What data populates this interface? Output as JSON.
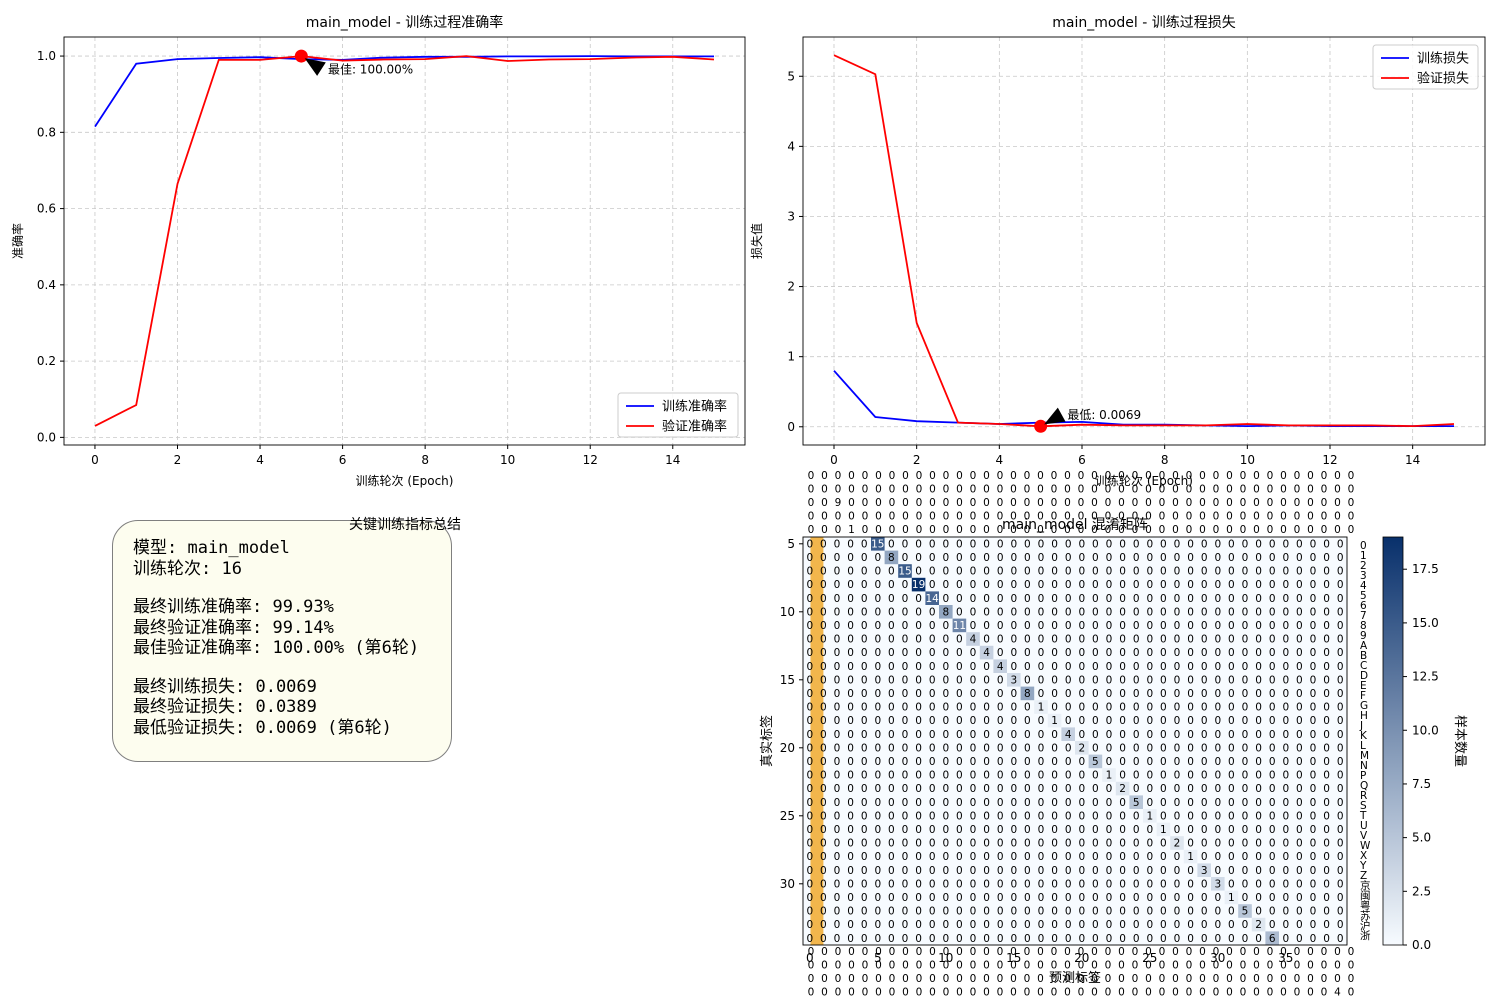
{
  "chart_data": [
    {
      "type": "line",
      "title": "main_model - 训练过程准确率",
      "xlabel": "训练轮次 (Epoch)",
      "ylabel": "准确率",
      "xlim": [
        -0.75,
        15.75
      ],
      "ylim": [
        -0.02,
        1.05
      ],
      "xticks": [
        0,
        2,
        4,
        6,
        8,
        10,
        12,
        14
      ],
      "yticks": [
        0.0,
        0.2,
        0.4,
        0.6,
        0.8,
        1.0
      ],
      "grid": true,
      "legend": "bottom-right",
      "x": [
        0,
        1,
        2,
        3,
        4,
        5,
        6,
        7,
        8,
        9,
        10,
        11,
        12,
        13,
        14,
        15
      ],
      "series": [
        {
          "name": "训练准确率",
          "color": "#0000ff",
          "values": [
            0.815,
            0.98,
            0.992,
            0.995,
            0.997,
            0.992,
            0.99,
            0.996,
            0.998,
            0.998,
            0.999,
            0.999,
            1.0,
            0.999,
            0.999,
            0.999
          ]
        },
        {
          "name": "验证准确率",
          "color": "#ff0000",
          "values": [
            0.03,
            0.085,
            0.665,
            0.99,
            0.99,
            1.0,
            0.988,
            0.991,
            0.992,
            1.0,
            0.987,
            0.991,
            0.992,
            0.996,
            0.998,
            0.991
          ]
        }
      ],
      "annotation": {
        "text": "最佳: 100.00%",
        "x": 5,
        "y": 1.0,
        "text_x": 5.5,
        "text_y": 0.965
      }
    },
    {
      "type": "line",
      "title": "main_model - 训练过程损失",
      "xlabel": "训练轮次 (Epoch)",
      "ylabel": "损失值",
      "xlim": [
        -0.75,
        15.75
      ],
      "ylim": [
        -0.26,
        5.56
      ],
      "xticks": [
        0,
        2,
        4,
        6,
        8,
        10,
        12,
        14
      ],
      "yticks": [
        0,
        1,
        2,
        3,
        4,
        5
      ],
      "grid": true,
      "legend": "top-right",
      "x": [
        0,
        1,
        2,
        3,
        4,
        5,
        6,
        7,
        8,
        9,
        10,
        11,
        12,
        13,
        14,
        15
      ],
      "series": [
        {
          "name": "训练损失",
          "color": "#0000ff",
          "values": [
            0.8,
            0.14,
            0.08,
            0.06,
            0.04,
            0.06,
            0.07,
            0.03,
            0.03,
            0.02,
            0.01,
            0.02,
            0.01,
            0.01,
            0.01,
            0.01
          ]
        },
        {
          "name": "验证损失",
          "color": "#ff0000",
          "values": [
            5.3,
            5.03,
            1.48,
            0.06,
            0.04,
            0.0069,
            0.03,
            0.02,
            0.02,
            0.02,
            0.04,
            0.02,
            0.02,
            0.02,
            0.01,
            0.04
          ]
        }
      ],
      "annotation": {
        "text": "最低: 0.0069",
        "x": 5,
        "y": 0.0069,
        "text_x": 5.5,
        "text_y": 0.17
      }
    },
    {
      "type": "heatmap",
      "title": "main_model 混淆矩阵",
      "xlabel": "预测标签",
      "ylabel": "真实标签",
      "colorbar_label": "样本数量",
      "colorbar_ticks": [
        "0.0",
        "2.5",
        "5.0",
        "7.5",
        "10.0",
        "12.5",
        "15.0",
        "17.5"
      ],
      "colorbar_range": [
        0,
        19
      ],
      "colormap": "Blues",
      "highlight_column_color": "#f2b64c",
      "left_ticks": [
        "5",
        "10",
        "15",
        "20",
        "25",
        "30"
      ],
      "left_tick_rows": [
        0,
        5,
        10,
        15,
        20,
        25
      ],
      "bottom_ticks": [
        "0",
        "5",
        "10",
        "15",
        "20",
        "25",
        "30",
        "35"
      ],
      "bottom_tick_cols": [
        0,
        5,
        10,
        15,
        20,
        25,
        30,
        35
      ],
      "right_labels": [
        "0",
        "1",
        "2",
        "3",
        "4",
        "5",
        "6",
        "7",
        "8",
        "9",
        "A",
        "B",
        "C",
        "D",
        "E",
        "F",
        "G",
        "H",
        "J",
        "K",
        "L",
        "M",
        "N",
        "P",
        "Q",
        "R",
        "S",
        "T",
        "U",
        "V",
        "W",
        "X",
        "Y",
        "Z",
        "京",
        "闽",
        "粤",
        "苏",
        "沪",
        "浙"
      ],
      "diagonal_values": [
        15,
        8,
        15,
        19,
        14,
        8,
        11,
        4,
        4,
        4,
        3,
        8,
        1,
        1,
        4,
        2,
        5,
        1,
        2,
        5,
        1,
        1,
        2,
        1,
        3,
        3,
        1,
        5,
        2,
        6
      ],
      "diagonal_start_col": 5,
      "top_overlay_rows": [
        "00000000000000000000000000000000000000000",
        "00000000000000000000000000000000000000000",
        "00900000000000000000000000000000000000000",
        "00000000000000000000000000000000000000000",
        "00010000000000000000000000000000000000000"
      ],
      "bottom_overlay_rows": [
        "00000000000000000000000000000000000000000",
        "00000000000000000000000000000000000000000",
        "00000000000000000000000000000000000000000",
        "00000000000000000000000000000000000000040"
      ]
    }
  ],
  "summary": {
    "title": "关键训练指标总结",
    "model": "模型: main_model",
    "epochs": "训练轮次: 16",
    "final_train_acc": "最终训练准确率: 99.93%",
    "final_val_acc": "最终验证准确率: 99.14%",
    "best_val_acc": "最佳验证准确率: 100.00% (第6轮)",
    "final_train_loss": "最终训练损失: 0.0069",
    "final_val_loss": "最终验证损失: 0.0389",
    "min_val_loss": "最低验证损失: 0.0069 (第6轮)"
  }
}
